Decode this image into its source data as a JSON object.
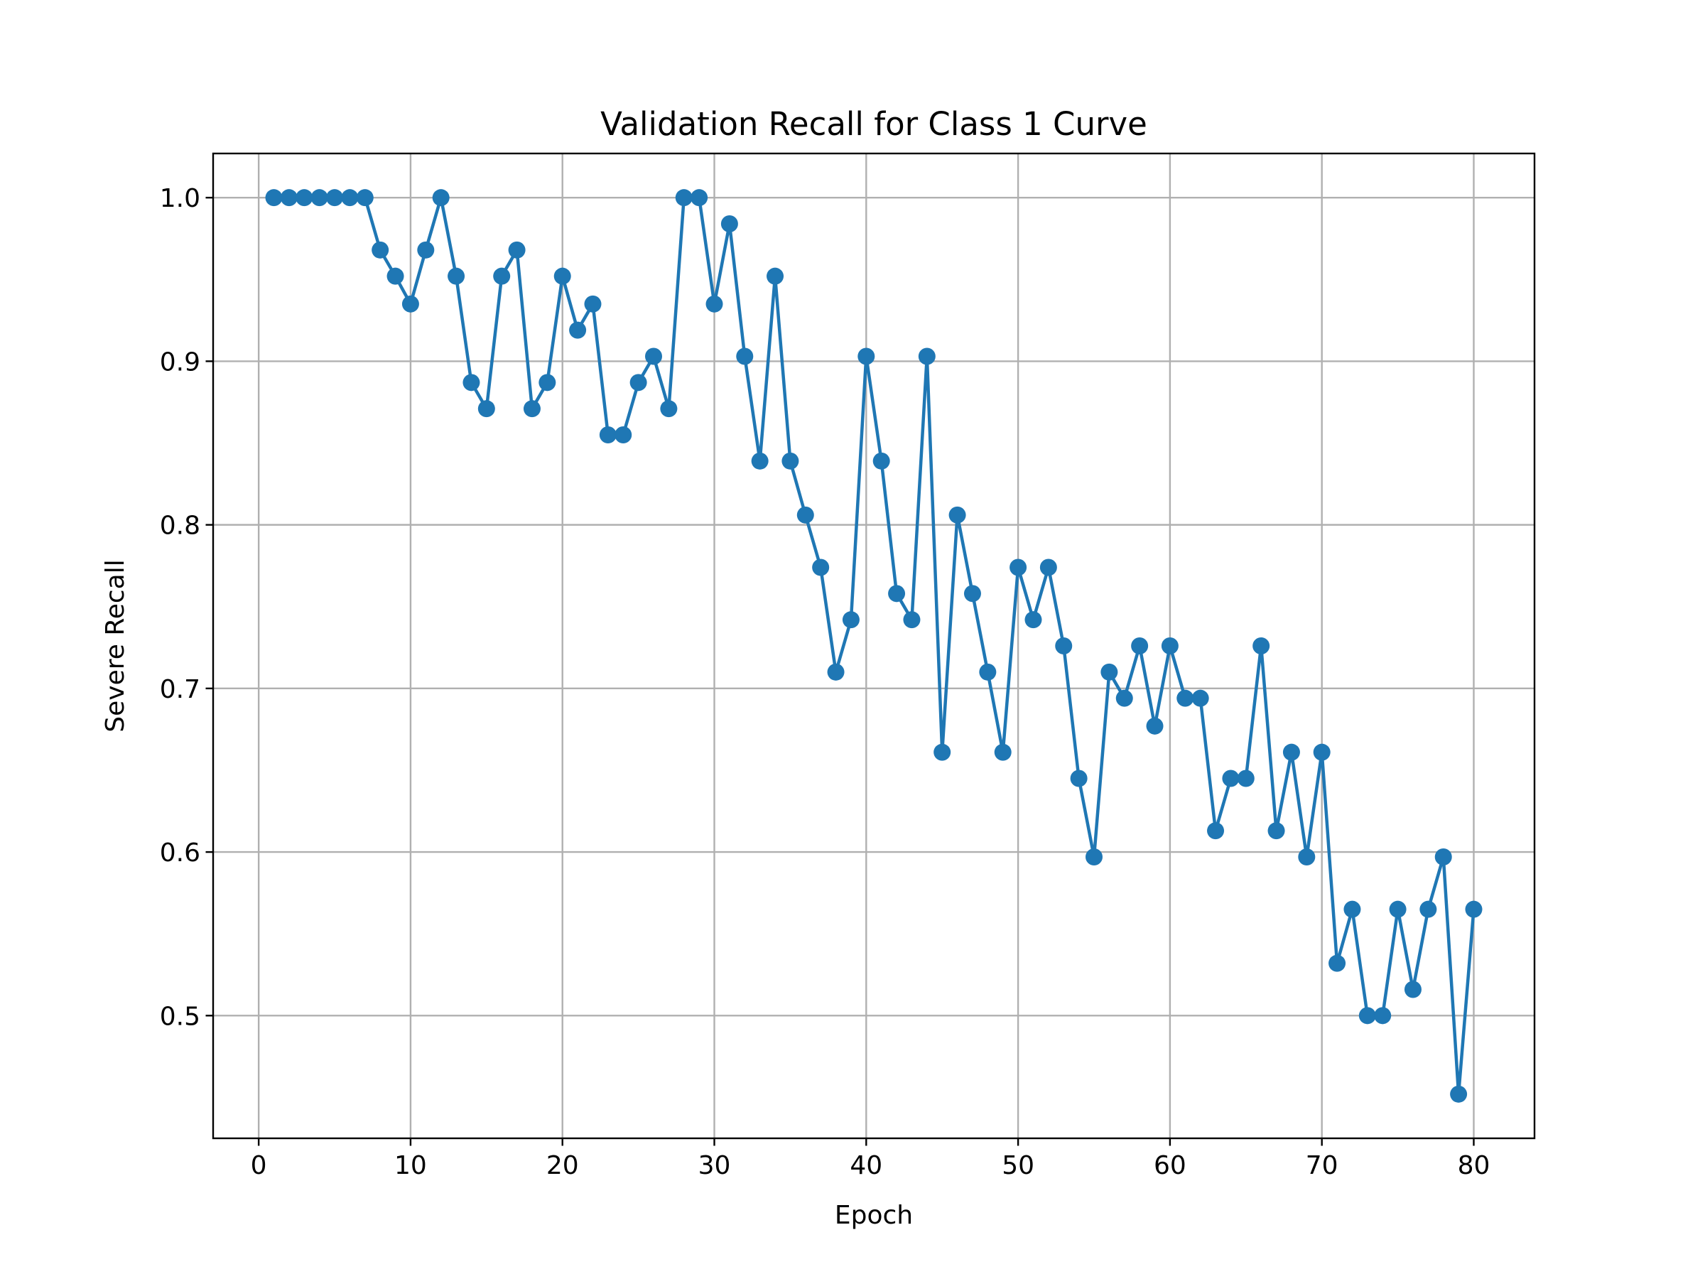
{
  "chart_data": {
    "type": "line",
    "title": "Validation Recall for Class 1 Curve",
    "xlabel": "Epoch",
    "ylabel": "Severe Recall",
    "xlim": [
      -3,
      84
    ],
    "ylim": [
      0.425,
      1.027
    ],
    "xticks": [
      0,
      10,
      20,
      30,
      40,
      50,
      60,
      70,
      80
    ],
    "yticks": [
      0.5,
      0.6,
      0.7,
      0.8,
      0.9,
      1.0
    ],
    "xtick_labels": [
      "0",
      "10",
      "20",
      "30",
      "40",
      "50",
      "60",
      "70",
      "80"
    ],
    "ytick_labels": [
      "0.5",
      "0.6",
      "0.7",
      "0.8",
      "0.9",
      "1.0"
    ],
    "grid": true,
    "marker": "circle",
    "color": "#1f77b4",
    "series": [
      {
        "x": [
          1,
          2,
          3,
          4,
          5,
          6,
          7,
          8,
          9,
          10,
          11,
          12,
          13,
          14,
          15,
          16,
          17,
          18,
          19,
          20,
          21,
          22,
          23,
          24,
          25,
          26,
          27,
          28,
          29,
          30,
          31,
          32,
          33,
          34,
          35,
          36,
          37,
          38,
          39,
          40,
          41,
          42,
          43,
          44,
          45,
          46,
          47,
          48,
          49,
          50,
          51,
          52,
          53,
          54,
          55,
          56,
          57,
          58,
          59,
          60,
          61,
          62,
          63,
          64,
          65,
          66,
          67,
          68,
          69,
          70,
          71,
          72,
          73,
          74,
          75,
          76,
          77,
          78,
          79,
          80
        ],
        "values": [
          1.0,
          1.0,
          1.0,
          1.0,
          1.0,
          1.0,
          1.0,
          0.968,
          0.952,
          0.935,
          0.968,
          1.0,
          0.952,
          0.887,
          0.871,
          0.952,
          0.968,
          0.871,
          0.887,
          0.952,
          0.919,
          0.935,
          0.855,
          0.855,
          0.887,
          0.903,
          0.871,
          1.0,
          1.0,
          0.935,
          0.984,
          0.903,
          0.839,
          0.952,
          0.839,
          0.806,
          0.774,
          0.71,
          0.742,
          0.903,
          0.839,
          0.758,
          0.742,
          0.903,
          0.661,
          0.806,
          0.758,
          0.71,
          0.661,
          0.774,
          0.742,
          0.774,
          0.726,
          0.645,
          0.597,
          0.71,
          0.694,
          0.726,
          0.677,
          0.726,
          0.694,
          0.694,
          0.613,
          0.645,
          0.645,
          0.726,
          0.613,
          0.661,
          0.597,
          0.661,
          0.532,
          0.565,
          0.5,
          0.5,
          0.565,
          0.516,
          0.565,
          0.597,
          0.452,
          0.565
        ]
      }
    ]
  }
}
